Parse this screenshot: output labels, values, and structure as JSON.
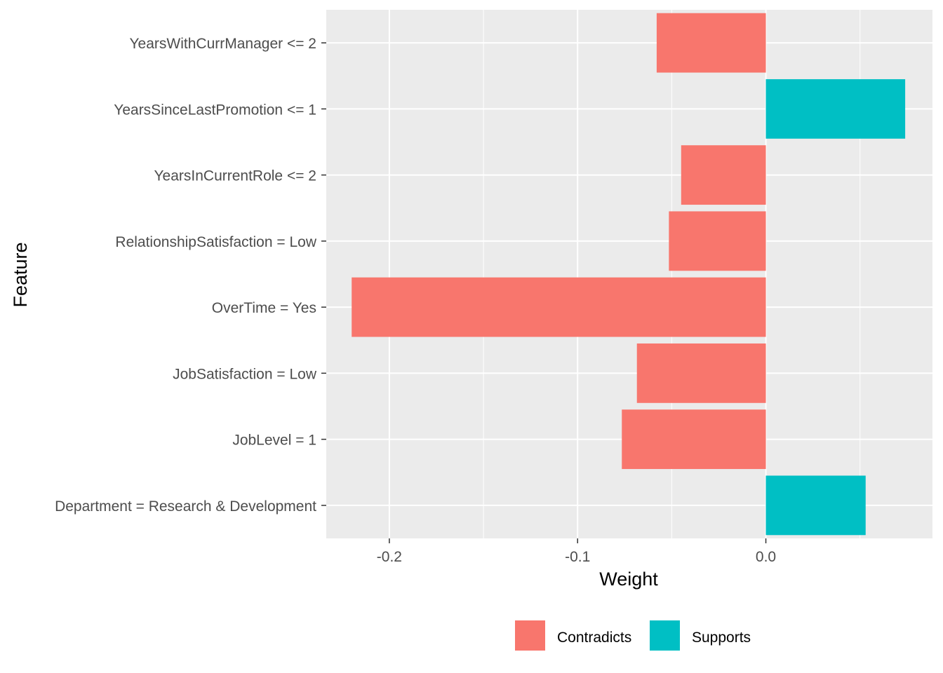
{
  "chart_data": {
    "type": "bar",
    "orientation": "horizontal",
    "xlabel": "Weight",
    "ylabel": "Feature",
    "xlim": [
      -0.2335,
      0.0885
    ],
    "xticks": [
      -0.2,
      -0.1,
      0.0
    ],
    "xtick_labels": [
      "-0.2",
      "-0.1",
      "0.0"
    ],
    "grid": true,
    "legend_position": "bottom",
    "categories": [
      "YearsWithCurrManager <= 2",
      "YearsSinceLastPromotion <= 1",
      "YearsInCurrentRole <= 2",
      "RelationshipSatisfaction = Low",
      "OverTime = Yes",
      "JobSatisfaction = Low",
      "JobLevel = 1",
      "Department = Research & Development"
    ],
    "values": [
      -0.058,
      0.074,
      -0.045,
      -0.0515,
      -0.22,
      -0.0685,
      -0.0765,
      0.053
    ],
    "groups": [
      "Contradicts",
      "Supports",
      "Contradicts",
      "Contradicts",
      "Contradicts",
      "Contradicts",
      "Contradicts",
      "Supports"
    ],
    "legend": [
      {
        "label": "Contradicts",
        "color": "#F8766D"
      },
      {
        "label": "Supports",
        "color": "#00BFC4"
      }
    ],
    "colors": {
      "panel": "#EBEBEB",
      "grid": "#FFFFFF",
      "text": "#4D4D4D",
      "title": "#000000"
    }
  }
}
